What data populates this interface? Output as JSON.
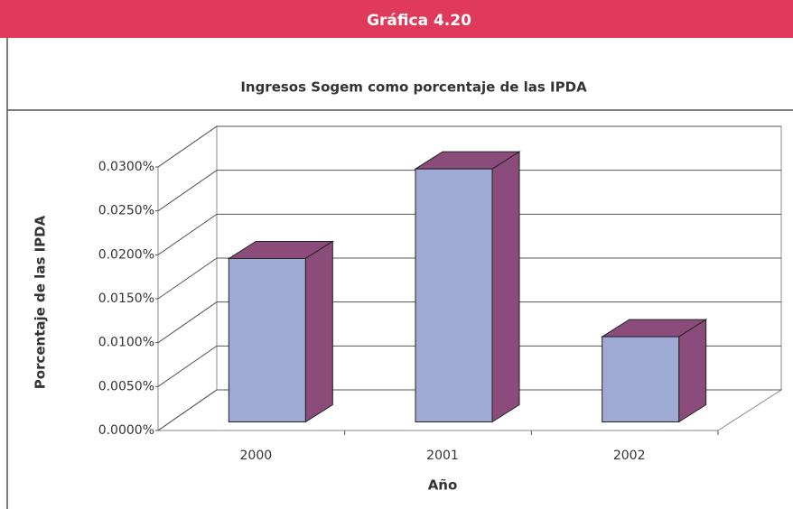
{
  "chart_data": {
    "type": "bar3d",
    "title": "Gráfica 4.20",
    "subtitle": "Ingresos Sogem como porcentaje de las IPDA",
    "xlabel": "Año",
    "ylabel": "Porcentaje de las IPDA",
    "categories": [
      "2000",
      "2001",
      "2002"
    ],
    "values": [
      0.0186,
      0.0288,
      0.0097
    ],
    "color": "#9ea9d4",
    "side_color": "#8b4c7c",
    "ylim": [
      0,
      0.03
    ],
    "yticks": [
      {
        "value": 0,
        "label": "0.0000%"
      },
      {
        "value": 0.005,
        "label": "0.0050%"
      },
      {
        "value": 0.01,
        "label": "0.0100%"
      },
      {
        "value": 0.015,
        "label": "0.0150%"
      },
      {
        "value": 0.02,
        "label": "0.0200%"
      },
      {
        "value": 0.025,
        "label": "0.0250%"
      },
      {
        "value": 0.03,
        "label": "0.0300%"
      }
    ],
    "grid": true
  }
}
